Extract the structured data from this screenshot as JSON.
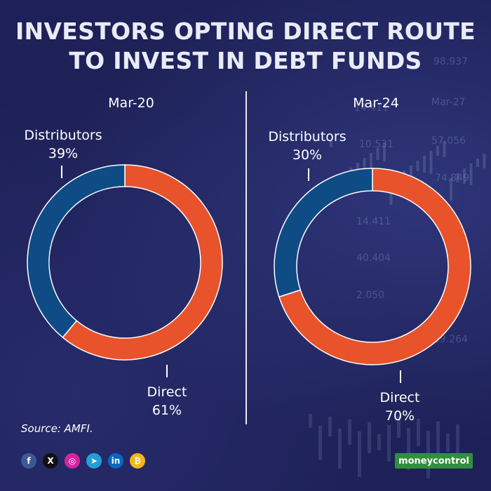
{
  "title": {
    "line1": "INVESTORS OPTING DIRECT ROUTE",
    "line2": "TO INVEST IN DEBT FUNDS"
  },
  "background_numbers": [
    "98.937",
    "14.411",
    "Mar-27",
    "10.531",
    "57.056",
    "74.849",
    "14.411",
    "40.404",
    "2.050",
    "89.264"
  ],
  "colors": {
    "background": "#1e2157",
    "direct": "#e8532c",
    "distributors": "#0f4c86",
    "divider": "#e6e8f4"
  },
  "chart_data": [
    {
      "type": "pie",
      "title": "Mar-20",
      "categories": [
        "Distributors",
        "Direct"
      ],
      "values": [
        39,
        61
      ],
      "value_labels": [
        "39%",
        "61%"
      ]
    },
    {
      "type": "pie",
      "title": "Mar-24",
      "categories": [
        "Distributors",
        "Direct"
      ],
      "values": [
        30,
        70
      ],
      "value_labels": [
        "30%",
        "70%"
      ]
    }
  ],
  "source": "Source: AMFI.",
  "socials": [
    {
      "name": "facebook-icon",
      "glyph": "f",
      "color": "#3b5998"
    },
    {
      "name": "x-icon",
      "glyph": "X",
      "color": "#111111"
    },
    {
      "name": "instagram-icon",
      "glyph": "◎",
      "color": "#d6249f"
    },
    {
      "name": "telegram-icon",
      "glyph": "➤",
      "color": "#229ed9"
    },
    {
      "name": "linkedin-icon",
      "glyph": "in",
      "color": "#0a66c2"
    },
    {
      "name": "moneycontrol-app-icon",
      "glyph": "₿",
      "color": "#f2b51b"
    }
  ],
  "brand": "moneycontrol"
}
